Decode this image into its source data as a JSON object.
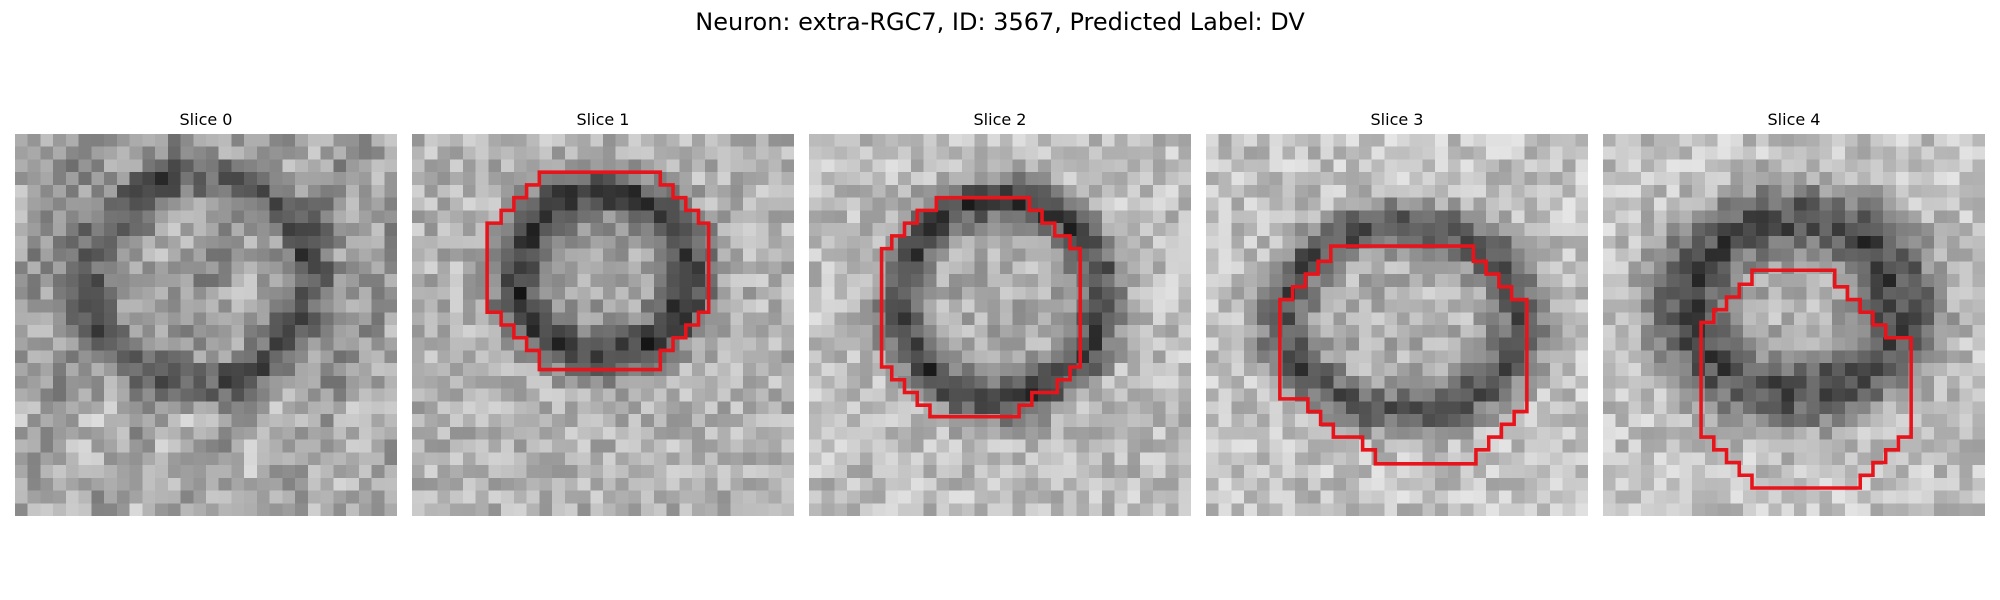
{
  "figure": {
    "title": "Neuron: extra-RGC7, ID: 3567, Predicted Label: DV"
  },
  "panels": [
    {
      "title": "Slice 0",
      "has_contour": false
    },
    {
      "title": "Slice 1",
      "has_contour": true
    },
    {
      "title": "Slice 2",
      "has_contour": true
    },
    {
      "title": "Slice 3",
      "has_contour": true
    },
    {
      "title": "Slice 4",
      "has_contour": true
    }
  ],
  "colors": {
    "contour": "#e8141b"
  },
  "image": {
    "colormap": "grayscale"
  }
}
